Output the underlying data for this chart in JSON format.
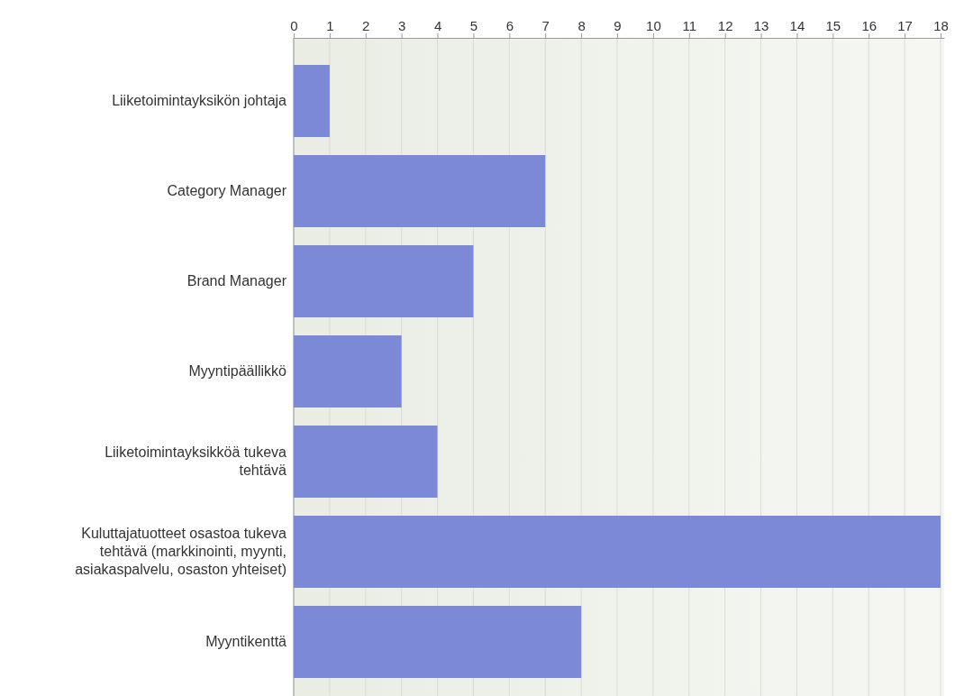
{
  "chart_data": {
    "type": "bar",
    "orientation": "horizontal",
    "categories": [
      "Liiketoimintayksikön johtaja",
      "Category Manager",
      "Brand Manager",
      "Myyntipäällikkö",
      "Liiketoimintayksikköä tukeva tehtävä",
      "Kuluttajatuotteet osastoa tukeva tehtävä (markkinointi, myynti, asiakaspalvelu, osaston yhteiset)",
      "Myyntikenttä"
    ],
    "values": [
      1,
      7,
      5,
      3,
      4,
      18,
      8
    ],
    "color": "#7b89d6",
    "xlim": [
      0,
      18.1
    ],
    "xticks": [
      0,
      1,
      2,
      3,
      4,
      5,
      6,
      7,
      8,
      9,
      10,
      11,
      12,
      13,
      14,
      15,
      16,
      17,
      18
    ],
    "grid": "x"
  }
}
